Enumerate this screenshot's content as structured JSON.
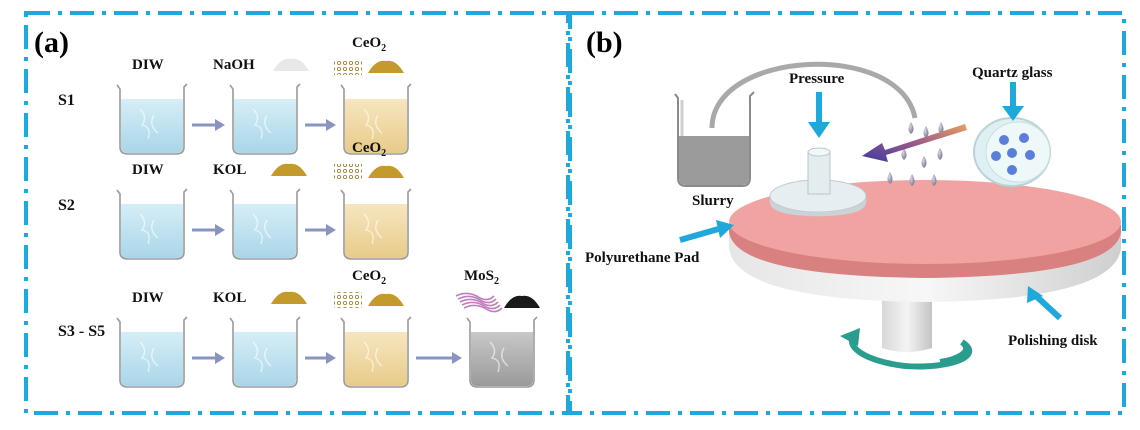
{
  "panel_a": {
    "label": "(a)",
    "rows": [
      {
        "name": "S1",
        "steps": [
          {
            "text": "DIW",
            "sub": ""
          },
          {
            "text": "NaOH",
            "sub": ""
          },
          {
            "text": "CeO",
            "sub": "2"
          }
        ]
      },
      {
        "name": "S2",
        "steps": [
          {
            "text": "DIW",
            "sub": ""
          },
          {
            "text": "KOL",
            "sub": ""
          },
          {
            "text": "CeO",
            "sub": "2"
          }
        ]
      },
      {
        "name": "S3 - S5",
        "steps": [
          {
            "text": "DIW",
            "sub": ""
          },
          {
            "text": "KOL",
            "sub": ""
          },
          {
            "text": "CeO",
            "sub": "2"
          },
          {
            "text": "MoS",
            "sub": "2"
          }
        ]
      }
    ]
  },
  "panel_b": {
    "label": "(b)",
    "pressure": "Pressure",
    "quartz": "Quartz glass",
    "slurry": "Slurry",
    "pad": "Polyurethane Pad",
    "disk": "Polishing disk"
  },
  "colors": {
    "border": "#1fa8dc",
    "arrow": "#1fa8dc",
    "water": "#bfe3f0",
    "ceo2_liquid": "#f1dcaa",
    "mos2_liquid": "#b3b3b3",
    "powder_gold": "#c49a2c",
    "pad": "#f0a0a0",
    "rotate_arrow": "#2a9d8f"
  }
}
